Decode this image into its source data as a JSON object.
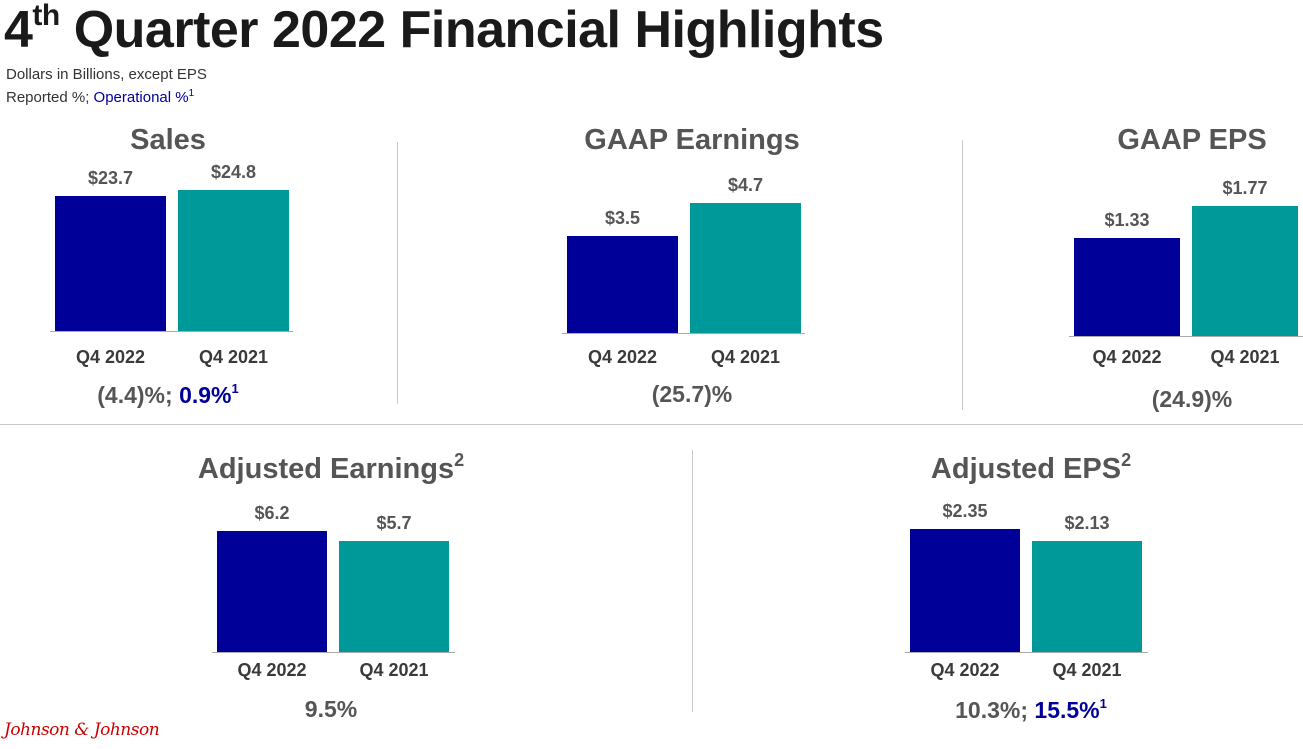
{
  "header": {
    "title_prefix": "4",
    "title_sup": "th",
    "title_rest": " Quarter 2022 Financial Highlights",
    "subtitle_line1": "Dollars in Billions, except EPS",
    "subtitle_reported": "Reported %; ",
    "subtitle_operational": "Operational %",
    "subtitle_footnote": "1"
  },
  "colors": {
    "q4_2022": "#000099",
    "q4_2021": "#009999"
  },
  "chart_data": [
    {
      "type": "bar",
      "title": "Sales",
      "title_footnote": "",
      "categories": [
        "Q4 2022",
        "Q4 2021"
      ],
      "values": [
        23.7,
        24.8
      ],
      "value_labels": [
        "$23.7",
        "$24.8"
      ],
      "change_reported": "(4.4)%",
      "change_operational": "0.9%",
      "change_footnote": "1"
    },
    {
      "type": "bar",
      "title": "GAAP Earnings",
      "title_footnote": "",
      "categories": [
        "Q4 2022",
        "Q4 2021"
      ],
      "values": [
        3.5,
        4.7
      ],
      "value_labels": [
        "$3.5",
        "$4.7"
      ],
      "change_reported": "(25.7)%",
      "change_operational": "",
      "change_footnote": ""
    },
    {
      "type": "bar",
      "title": "GAAP EPS",
      "title_footnote": "",
      "categories": [
        "Q4 2022",
        "Q4 2021"
      ],
      "values": [
        1.33,
        1.77
      ],
      "value_labels": [
        "$1.33",
        "$1.77"
      ],
      "change_reported": "(24.9)%",
      "change_operational": "",
      "change_footnote": ""
    },
    {
      "type": "bar",
      "title": "Adjusted Earnings",
      "title_footnote": "2",
      "categories": [
        "Q4 2022",
        "Q4 2021"
      ],
      "values": [
        6.2,
        5.7
      ],
      "value_labels": [
        "$6.2",
        "$5.7"
      ],
      "change_reported": "9.5%",
      "change_operational": "",
      "change_footnote": ""
    },
    {
      "type": "bar",
      "title": "Adjusted EPS",
      "title_footnote": "2",
      "categories": [
        "Q4 2022",
        "Q4 2021"
      ],
      "values": [
        2.35,
        2.13
      ],
      "value_labels": [
        "$2.35",
        "$2.13"
      ],
      "change_reported": "10.3%",
      "change_operational": "15.5%",
      "change_footnote": "1"
    }
  ],
  "footer": {
    "logo_text": "Johnson & Johnson"
  }
}
